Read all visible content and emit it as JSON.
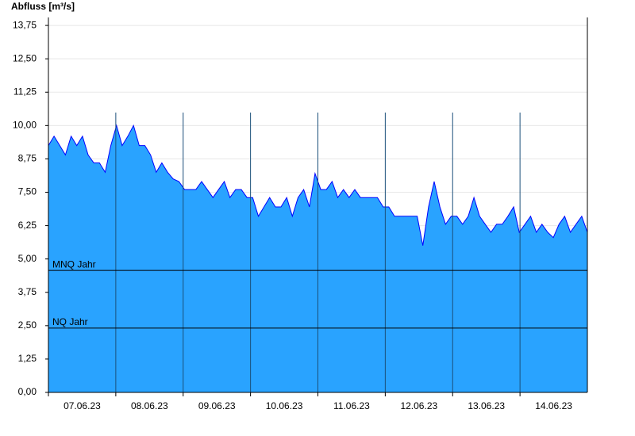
{
  "chart_data": {
    "type": "area",
    "ylabel": "Abfluss [m³/s]",
    "categories": [
      "07.06.23",
      "08.06.23",
      "09.06.23",
      "10.06.23",
      "11.06.23",
      "12.06.23",
      "13.06.23",
      "14.06.23"
    ],
    "series": [
      {
        "color": "#29a3ff",
        "line_color": "#0000ff",
        "values": [
          [
            9.25,
            9.6,
            9.25,
            8.9,
            9.6,
            9.25,
            9.6,
            8.9,
            8.6,
            8.6,
            8.25,
            9.25
          ],
          [
            10.0,
            9.25,
            9.6,
            10.0,
            9.25,
            9.25,
            8.9,
            8.25,
            8.6,
            8.25,
            8.0,
            7.9
          ],
          [
            7.6,
            7.6,
            7.6,
            7.9,
            7.6,
            7.3,
            7.6,
            7.9,
            7.3,
            7.6,
            7.6,
            7.3
          ],
          [
            7.3,
            6.6,
            6.95,
            7.3,
            6.95,
            6.95,
            7.3,
            6.6,
            7.3,
            7.6,
            6.95,
            8.2
          ],
          [
            7.6,
            7.6,
            7.9,
            7.3,
            7.6,
            7.3,
            7.6,
            7.3,
            7.3,
            7.3,
            7.3,
            6.95
          ],
          [
            6.95,
            6.6,
            6.6,
            6.6,
            6.6,
            6.6,
            5.5,
            6.95,
            7.9,
            6.95,
            6.3,
            6.6
          ],
          [
            6.6,
            6.3,
            6.6,
            7.3,
            6.6,
            6.3,
            6.0,
            6.3,
            6.3,
            6.6,
            6.95,
            6.0
          ],
          [
            6.3,
            6.6,
            6.0,
            6.3,
            6.0,
            5.8,
            6.3,
            6.6,
            6.0,
            6.3,
            6.6,
            6.0
          ]
        ]
      }
    ],
    "reference_lines": [
      {
        "label": "MNQ Jahr",
        "value": 4.57
      },
      {
        "label": "NQ Jahr",
        "value": 2.41
      }
    ],
    "ylim": [
      0,
      14.05
    ],
    "yticks": [
      {
        "value": 0,
        "label": "0,00"
      },
      {
        "value": 1.25,
        "label": "1,25"
      },
      {
        "value": 2.5,
        "label": "2,50"
      },
      {
        "value": 3.75,
        "label": "3,75"
      },
      {
        "value": 5,
        "label": "5,00"
      },
      {
        "value": 6.25,
        "label": "6,25"
      },
      {
        "value": 7.5,
        "label": "7,50"
      },
      {
        "value": 8.75,
        "label": "8,75"
      },
      {
        "value": 10,
        "label": "10,00"
      },
      {
        "value": 11.25,
        "label": "11,25"
      },
      {
        "value": 12.5,
        "label": "12,50"
      },
      {
        "value": 13.75,
        "label": "13,75"
      }
    ],
    "grid": true
  }
}
